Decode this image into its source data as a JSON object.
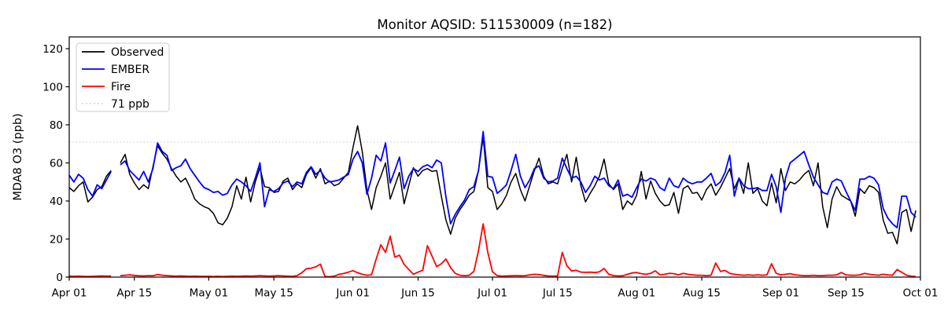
{
  "title": "Monitor AQSID: 511530009 (n=182)",
  "ylabel": "MDA8 O3 (ppb)",
  "threshold": {
    "value": 71,
    "label": "71 ppb",
    "color": "#d3d3d3"
  },
  "legend": {
    "items": [
      {
        "label": "Observed",
        "color": "#000000",
        "style": "solid"
      },
      {
        "label": "EMBER",
        "color": "#0000ff",
        "style": "solid"
      },
      {
        "label": "Fire",
        "color": "#ff0000",
        "style": "solid"
      },
      {
        "label": "71 ppb",
        "color": "#d3d3d3",
        "style": "dotted"
      }
    ]
  },
  "axes": {
    "x_tick_labels": [
      "Apr 01",
      "Apr 15",
      "May 01",
      "May 15",
      "Jun 01",
      "Jun 15",
      "Jul 01",
      "Jul 15",
      "Aug 01",
      "Aug 15",
      "Sep 01",
      "Sep 15",
      "Oct 01"
    ],
    "x_tick_days": [
      0,
      14,
      30,
      44,
      61,
      75,
      91,
      105,
      122,
      136,
      153,
      167,
      183
    ],
    "y_ticks": [
      0,
      20,
      40,
      60,
      80,
      100,
      120
    ],
    "y_max_view": 126.2,
    "x_days_total": 183
  },
  "chart_data": {
    "type": "line",
    "title": "Monitor AQSID: 511530009 (n=182)",
    "xlabel": "",
    "ylabel": "MDA8 O3 (ppb)",
    "x_start_label": "Apr 01",
    "x_end_label": "Sep 30",
    "x_unit": "day",
    "n_valid_points": 182,
    "missing_day_index": 10,
    "ylim": [
      0,
      126.2
    ],
    "grid": false,
    "legend_position": "upper left",
    "threshold_line": {
      "y": 71,
      "label": "71 ppb",
      "style": "dotted",
      "color": "#d3d3d3"
    },
    "series": [
      {
        "name": "Observed",
        "color": "#000000",
        "width": 1.5,
        "values": [
          47,
          45,
          48,
          50,
          39.5,
          42,
          46,
          47.5,
          53,
          56,
          null,
          60,
          64.5,
          54,
          49.5,
          46,
          48.5,
          46.5,
          58,
          69,
          65,
          62,
          57,
          53,
          50,
          52,
          47,
          41,
          38.5,
          37,
          36,
          33.5,
          28.5,
          27.5,
          31,
          37,
          48,
          41,
          52.5,
          39.5,
          50,
          57.5,
          47.5,
          47,
          44.5,
          45,
          50.5,
          52,
          46,
          49,
          47,
          54,
          57.5,
          52,
          57,
          49,
          50.5,
          48,
          49,
          52,
          55,
          68,
          79.5,
          66,
          46,
          35.5,
          47,
          53,
          60,
          41,
          48,
          55,
          38.5,
          48,
          57.5,
          53,
          56,
          57,
          55.5,
          56,
          42.5,
          30,
          22.5,
          31,
          35.5,
          39,
          43,
          45,
          56,
          73.5,
          47,
          45,
          35.5,
          38.5,
          43,
          50,
          54.5,
          46,
          40,
          48,
          56,
          62.5,
          53,
          49,
          50,
          49,
          57,
          64.5,
          50,
          63,
          48,
          39.5,
          44,
          48,
          53,
          62,
          49,
          46,
          49,
          35.5,
          40,
          38,
          43,
          55.5,
          41,
          50.5,
          44,
          40,
          37.5,
          38,
          44.5,
          33.5,
          46.5,
          48,
          44,
          44.5,
          40.5,
          46,
          49,
          43,
          47,
          52,
          57,
          46.5,
          52,
          44,
          60,
          44,
          46.5,
          40,
          37.5,
          49.5,
          39,
          57,
          45.5,
          50,
          49,
          51,
          54,
          56,
          48,
          60,
          37,
          26,
          41,
          47.5,
          43,
          41.5,
          40,
          32,
          46.5,
          44,
          48,
          47,
          44.5,
          30,
          23,
          23.5,
          17.5,
          34,
          35.5,
          24,
          35
        ]
      },
      {
        "name": "EMBER",
        "color": "#0000ff",
        "width": 1.8,
        "values": [
          53.5,
          50,
          54,
          52,
          46,
          42.5,
          48.5,
          46.5,
          51,
          55.5,
          null,
          59,
          61,
          56,
          53.5,
          51,
          55.5,
          50,
          57,
          70.5,
          66,
          64,
          56,
          57.5,
          58.5,
          62,
          57,
          53.5,
          50,
          47,
          46,
          44.5,
          45,
          43,
          44,
          48.5,
          51.5,
          50,
          48,
          45,
          52,
          60,
          37,
          46,
          45,
          46.5,
          49.5,
          50.5,
          47.5,
          50,
          49,
          55,
          58,
          54,
          56,
          52,
          50,
          50.5,
          51,
          52.5,
          54,
          62,
          66,
          60,
          43.5,
          52,
          64,
          61,
          70.5,
          49.5,
          56,
          63,
          46.5,
          53,
          57,
          55.5,
          58,
          59,
          57.5,
          61.5,
          60,
          42,
          28,
          33,
          37,
          40.5,
          46,
          47.5,
          56,
          76.5,
          53,
          52.5,
          44,
          46,
          48.5,
          56,
          64.5,
          53,
          47,
          51,
          57,
          58.5,
          52,
          50,
          50.5,
          52,
          62.5,
          57,
          52,
          53,
          50,
          44.5,
          48,
          53,
          51,
          52,
          48,
          46.5,
          51,
          42.5,
          43.5,
          42,
          47,
          51.5,
          50.5,
          52,
          51,
          47,
          45.5,
          52,
          48,
          47,
          52,
          50,
          49,
          50,
          50,
          52,
          54.5,
          48,
          50,
          55,
          64,
          42.5,
          52,
          48,
          46.5,
          46.5,
          47,
          45.5,
          45.5,
          54,
          47.5,
          34,
          52,
          60,
          62,
          64,
          66,
          59,
          52.5,
          48.5,
          44.5,
          43.5,
          50,
          51.5,
          50.5,
          45,
          40,
          35,
          51.5,
          51.5,
          53,
          52,
          48.5,
          36,
          31,
          28,
          26,
          42.5,
          42.5,
          34,
          31.5
        ]
      },
      {
        "name": "Fire",
        "color": "#ff0000",
        "width": 1.8,
        "values": [
          0.5,
          0.4,
          0.5,
          0.4,
          0.3,
          0.4,
          0.5,
          0.6,
          0.5,
          0.6,
          null,
          0.8,
          1,
          1.2,
          0.9,
          0.7,
          0.6,
          0.8,
          0.7,
          1.3,
          1,
          0.8,
          0.6,
          0.5,
          0.6,
          0.5,
          0.4,
          0.5,
          0.4,
          0.4,
          0.4,
          0.3,
          0.4,
          0.3,
          0.4,
          0.5,
          0.4,
          0.5,
          0.6,
          0.5,
          0.6,
          0.8,
          0.6,
          0.5,
          0.6,
          0.8,
          0.6,
          0.5,
          0.4,
          0.8,
          2.3,
          4.4,
          4.7,
          5.4,
          6.8,
          0.3,
          0.2,
          0.5,
          1.5,
          1.9,
          2.6,
          3.4,
          2.3,
          1.5,
          1,
          1.2,
          9.5,
          17,
          13,
          21.5,
          10.5,
          11.5,
          6.7,
          4,
          1.5,
          2.6,
          3.6,
          16.5,
          11,
          5.5,
          7,
          9.5,
          5,
          2,
          1,
          0.8,
          1,
          3,
          14,
          28,
          13,
          2.8,
          0.8,
          0.5,
          0.6,
          0.7,
          0.8,
          0.7,
          0.8,
          1.2,
          1.5,
          1.3,
          0.9,
          0.6,
          0.5,
          0.6,
          13,
          6,
          3.2,
          3.6,
          2.6,
          2.5,
          2.6,
          2.4,
          2.8,
          4.5,
          1.5,
          0.8,
          0.6,
          0.7,
          1.5,
          2.2,
          2.4,
          1.8,
          1.5,
          2,
          3.3,
          1.2,
          1.5,
          2,
          1.8,
          1.2,
          2,
          1.5,
          1.2,
          1,
          1,
          0.8,
          1,
          7.4,
          3,
          3.5,
          2,
          1.5,
          1.2,
          1,
          1.2,
          1,
          1.2,
          1,
          1.2,
          7,
          2,
          1.2,
          1.5,
          1.8,
          1.2,
          1,
          0.8,
          0.8,
          1,
          0.8,
          0.8,
          1,
          1,
          1.2,
          2.4,
          1.2,
          1,
          1,
          1.2,
          2,
          1.5,
          1.2,
          1,
          1.5,
          1.2,
          1,
          4,
          2.5,
          1,
          0.5,
          0.3
        ]
      }
    ]
  }
}
